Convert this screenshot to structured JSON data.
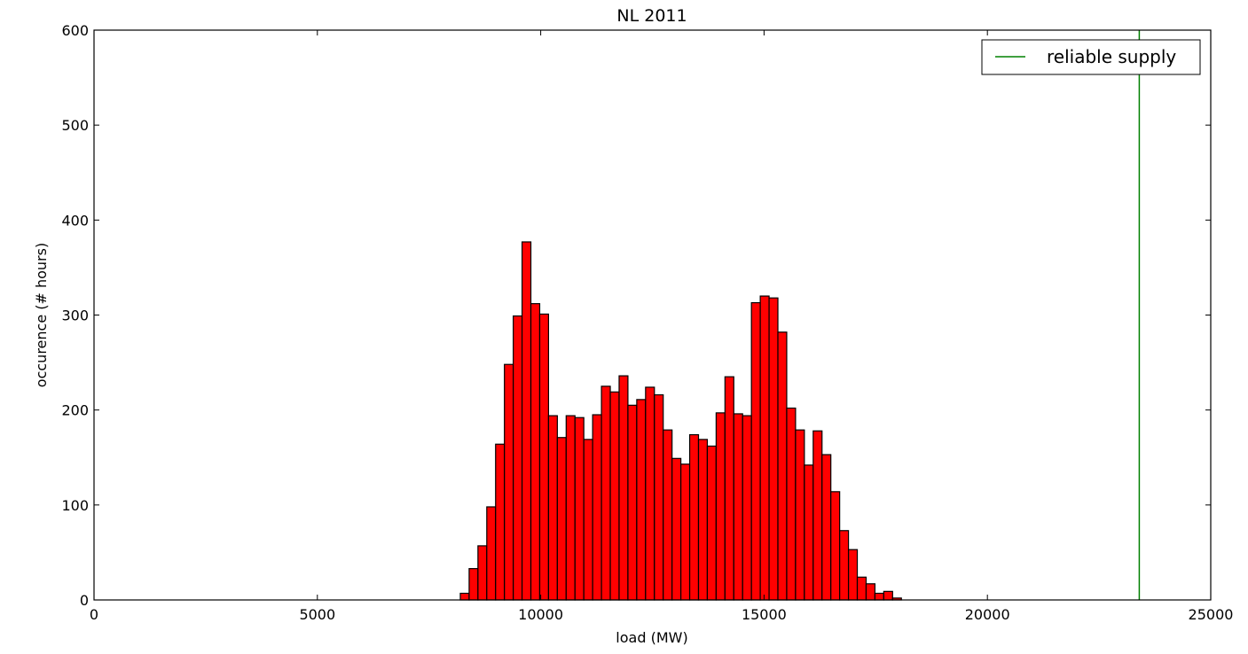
{
  "chart_data": {
    "type": "bar",
    "subtype": "histogram",
    "title": "NL 2011",
    "xlabel": "load (MW)",
    "ylabel": "occurence (# hours)",
    "xlim": [
      0,
      25000
    ],
    "ylim": [
      0,
      600
    ],
    "xticks": [
      0,
      5000,
      10000,
      15000,
      20000,
      25000
    ],
    "yticks": [
      0,
      100,
      200,
      300,
      400,
      500,
      600
    ],
    "grid": false,
    "legend_position": "top-right",
    "bar_color": "#ff0000",
    "bar_edge_color": "#000000",
    "bin_start": 8200,
    "bin_width": 197.5,
    "series": [
      {
        "values": [
          7,
          33,
          57,
          98,
          164,
          248,
          299,
          377,
          312,
          301,
          194,
          171,
          194,
          192,
          169,
          195,
          225,
          219,
          236,
          205,
          211,
          224,
          216,
          179,
          149,
          143,
          174,
          169,
          162,
          197,
          235,
          196,
          194,
          313,
          320,
          318,
          282,
          202,
          179,
          142,
          178,
          153,
          114,
          73,
          53,
          24,
          17,
          7,
          9,
          2
        ]
      }
    ],
    "reference_lines": [
      {
        "name": "reliable supply",
        "x": 23400,
        "color": "#008000"
      }
    ]
  }
}
